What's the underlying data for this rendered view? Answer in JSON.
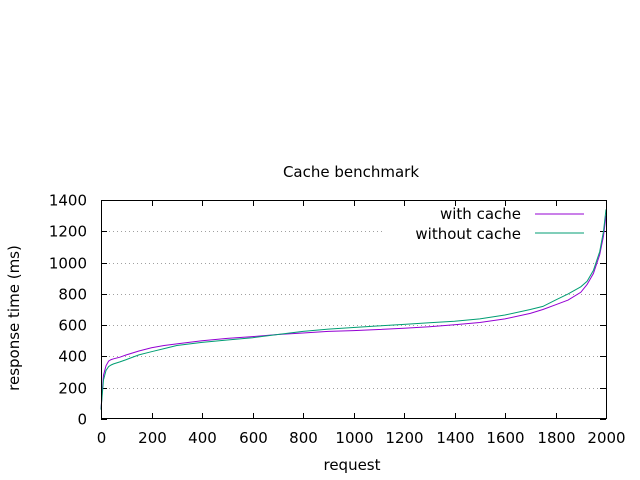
{
  "chart_data": {
    "type": "line",
    "title": "Cache benchmark",
    "xlabel": "request",
    "ylabel": "response time (ms)",
    "xlim": [
      0,
      2000
    ],
    "ylim": [
      0,
      1400
    ],
    "xticks": [
      0,
      200,
      400,
      600,
      800,
      1000,
      1200,
      1400,
      1600,
      1800,
      2000
    ],
    "yticks": [
      0,
      200,
      400,
      600,
      800,
      1000,
      1200,
      1400
    ],
    "grid": "horizontal",
    "legend_position": "top-right",
    "series": [
      {
        "name": "with cache",
        "color": "#9400d3",
        "x": [
          0,
          5,
          10,
          20,
          30,
          40,
          50,
          75,
          100,
          150,
          200,
          250,
          300,
          400,
          500,
          600,
          700,
          800,
          900,
          1000,
          1100,
          1200,
          1300,
          1400,
          1500,
          1600,
          1700,
          1750,
          1800,
          1850,
          1900,
          1925,
          1950,
          1975,
          1990,
          2000
        ],
        "y": [
          60,
          180,
          280,
          340,
          370,
          380,
          385,
          395,
          410,
          435,
          455,
          470,
          480,
          500,
          515,
          527,
          540,
          550,
          560,
          565,
          572,
          580,
          590,
          603,
          617,
          640,
          675,
          700,
          730,
          760,
          810,
          860,
          930,
          1050,
          1170,
          1300
        ]
      },
      {
        "name": "without cache",
        "color": "#009e73",
        "x": [
          0,
          5,
          10,
          20,
          30,
          40,
          50,
          75,
          100,
          150,
          200,
          250,
          300,
          400,
          500,
          600,
          700,
          800,
          900,
          1000,
          1100,
          1200,
          1300,
          1400,
          1500,
          1600,
          1700,
          1750,
          1800,
          1850,
          1900,
          1925,
          1950,
          1975,
          1990,
          2000
        ],
        "y": [
          60,
          160,
          250,
          310,
          335,
          345,
          352,
          365,
          380,
          410,
          430,
          450,
          470,
          490,
          505,
          520,
          540,
          560,
          575,
          585,
          595,
          605,
          615,
          625,
          640,
          665,
          700,
          720,
          760,
          800,
          845,
          880,
          950,
          1070,
          1200,
          1340
        ]
      }
    ]
  }
}
